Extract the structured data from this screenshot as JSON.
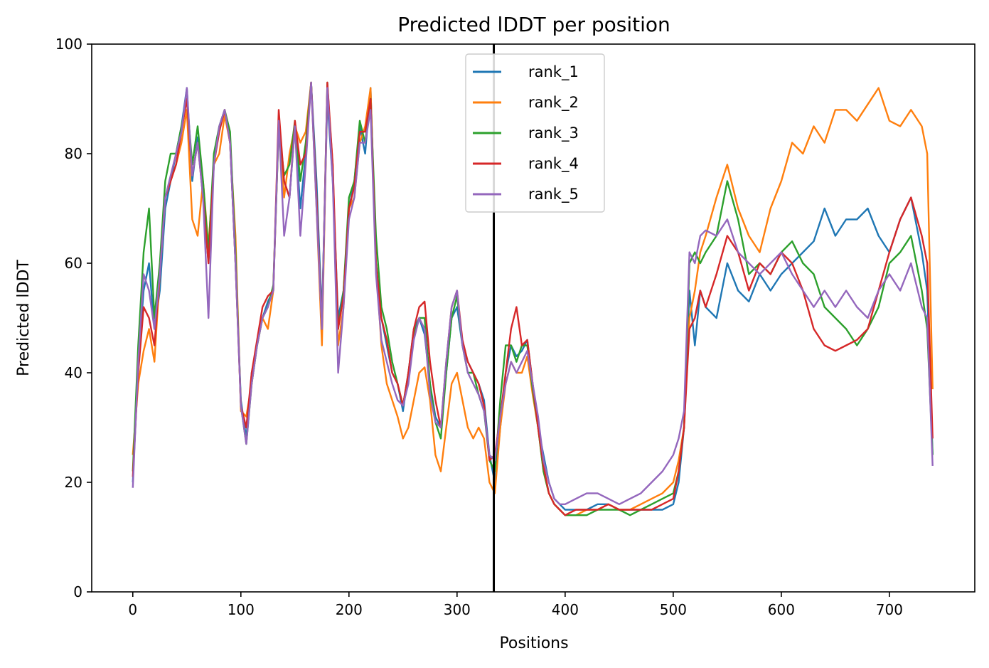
{
  "chart_data": {
    "type": "line",
    "title": "Predicted lDDT per position",
    "xlabel": "Positions",
    "ylabel": "Predicted lDDT",
    "xlim": [
      -38,
      779
    ],
    "ylim": [
      0,
      100
    ],
    "xticks": [
      0,
      100,
      200,
      300,
      400,
      500,
      600,
      700
    ],
    "yticks": [
      0,
      20,
      40,
      60,
      80,
      100
    ],
    "vline_x": 334,
    "legend_position": "upper-center",
    "grid": false,
    "series": [
      {
        "name": "rank_1",
        "color": "#1f77b4",
        "x": [
          0,
          5,
          10,
          15,
          20,
          25,
          30,
          35,
          40,
          45,
          50,
          55,
          60,
          65,
          70,
          75,
          80,
          85,
          90,
          95,
          100,
          105,
          110,
          115,
          120,
          125,
          130,
          135,
          140,
          145,
          150,
          155,
          160,
          165,
          170,
          175,
          180,
          185,
          190,
          195,
          200,
          205,
          210,
          215,
          220,
          225,
          230,
          235,
          240,
          245,
          250,
          255,
          260,
          265,
          270,
          275,
          280,
          285,
          290,
          295,
          300,
          305,
          310,
          315,
          320,
          325,
          330,
          335,
          340,
          345,
          350,
          355,
          360,
          365,
          370,
          375,
          380,
          385,
          390,
          395,
          400,
          410,
          420,
          430,
          440,
          450,
          460,
          470,
          480,
          490,
          500,
          505,
          510,
          515,
          520,
          525,
          530,
          540,
          550,
          560,
          570,
          580,
          590,
          600,
          610,
          620,
          630,
          640,
          650,
          660,
          670,
          680,
          690,
          700,
          710,
          720,
          730,
          735,
          740
        ],
        "y": [
          20,
          42,
          55,
          60,
          48,
          55,
          70,
          75,
          80,
          85,
          92,
          75,
          83,
          72,
          60,
          78,
          85,
          88,
          82,
          60,
          35,
          28,
          40,
          45,
          50,
          53,
          55,
          85,
          75,
          72,
          85,
          70,
          80,
          93,
          75,
          50,
          90,
          75,
          50,
          55,
          70,
          75,
          85,
          80,
          92,
          60,
          50,
          45,
          40,
          38,
          33,
          40,
          48,
          50,
          47,
          38,
          32,
          30,
          40,
          50,
          52,
          45,
          42,
          40,
          38,
          35,
          25,
          20,
          30,
          40,
          45,
          43,
          44,
          46,
          38,
          30,
          25,
          20,
          17,
          16,
          15,
          15,
          15,
          16,
          16,
          15,
          15,
          15,
          15,
          15,
          16,
          20,
          30,
          55,
          45,
          55,
          52,
          50,
          60,
          55,
          53,
          58,
          55,
          58,
          60,
          62,
          64,
          70,
          65,
          68,
          68,
          70,
          65,
          62,
          68,
          72,
          62,
          55,
          25
        ]
      },
      {
        "name": "rank_2",
        "color": "#ff7f0e",
        "x": [
          0,
          5,
          10,
          15,
          20,
          25,
          30,
          35,
          40,
          45,
          50,
          55,
          60,
          65,
          70,
          75,
          80,
          85,
          90,
          95,
          100,
          105,
          110,
          115,
          120,
          125,
          130,
          135,
          140,
          145,
          150,
          155,
          160,
          165,
          170,
          175,
          180,
          185,
          190,
          195,
          200,
          205,
          210,
          215,
          220,
          225,
          230,
          235,
          240,
          245,
          250,
          255,
          260,
          265,
          270,
          275,
          280,
          285,
          290,
          295,
          300,
          305,
          310,
          315,
          320,
          325,
          330,
          335,
          340,
          345,
          350,
          355,
          360,
          365,
          370,
          375,
          380,
          385,
          390,
          395,
          400,
          410,
          420,
          430,
          440,
          450,
          460,
          470,
          480,
          490,
          500,
          505,
          510,
          515,
          520,
          525,
          530,
          540,
          550,
          560,
          570,
          580,
          590,
          600,
          610,
          620,
          630,
          640,
          650,
          660,
          670,
          680,
          690,
          700,
          710,
          720,
          730,
          735,
          740
        ],
        "y": [
          25,
          38,
          44,
          48,
          42,
          58,
          72,
          75,
          78,
          82,
          88,
          68,
          65,
          75,
          63,
          78,
          80,
          87,
          82,
          65,
          33,
          32,
          38,
          45,
          50,
          48,
          55,
          85,
          72,
          80,
          85,
          82,
          84,
          93,
          70,
          45,
          92,
          78,
          45,
          52,
          70,
          72,
          82,
          85,
          92,
          60,
          45,
          38,
          35,
          32,
          28,
          30,
          35,
          40,
          41,
          35,
          25,
          22,
          30,
          38,
          40,
          35,
          30,
          28,
          30,
          28,
          20,
          18,
          30,
          38,
          42,
          40,
          40,
          43,
          36,
          30,
          22,
          18,
          16,
          15,
          14,
          14,
          15,
          15,
          16,
          15,
          15,
          16,
          17,
          18,
          20,
          24,
          30,
          50,
          55,
          62,
          65,
          72,
          78,
          70,
          65,
          62,
          70,
          75,
          82,
          80,
          85,
          82,
          88,
          88,
          86,
          89,
          92,
          86,
          85,
          88,
          85,
          80,
          37
        ]
      },
      {
        "name": "rank_3",
        "color": "#2ca02c",
        "x": [
          0,
          5,
          10,
          15,
          20,
          25,
          30,
          35,
          40,
          45,
          50,
          55,
          60,
          65,
          70,
          75,
          80,
          85,
          90,
          95,
          100,
          105,
          110,
          115,
          120,
          125,
          130,
          135,
          140,
          145,
          150,
          155,
          160,
          165,
          170,
          175,
          180,
          185,
          190,
          195,
          200,
          205,
          210,
          215,
          220,
          225,
          230,
          235,
          240,
          245,
          250,
          255,
          260,
          265,
          270,
          275,
          280,
          285,
          290,
          295,
          300,
          305,
          310,
          315,
          320,
          325,
          330,
          335,
          340,
          345,
          350,
          355,
          360,
          365,
          370,
          375,
          380,
          385,
          390,
          395,
          400,
          410,
          420,
          430,
          440,
          450,
          460,
          470,
          480,
          490,
          500,
          505,
          510,
          515,
          520,
          525,
          530,
          540,
          550,
          560,
          570,
          580,
          590,
          600,
          610,
          620,
          630,
          640,
          650,
          660,
          670,
          680,
          690,
          700,
          710,
          720,
          730,
          735,
          740
        ],
        "y": [
          22,
          45,
          62,
          70,
          50,
          60,
          75,
          80,
          80,
          85,
          90,
          78,
          85,
          75,
          62,
          80,
          85,
          88,
          84,
          62,
          34,
          27,
          38,
          45,
          50,
          52,
          56,
          85,
          76,
          78,
          86,
          75,
          82,
          93,
          72,
          48,
          93,
          76,
          48,
          55,
          72,
          75,
          86,
          82,
          90,
          65,
          52,
          48,
          42,
          38,
          34,
          40,
          47,
          50,
          50,
          38,
          31,
          28,
          40,
          50,
          54,
          45,
          40,
          40,
          36,
          33,
          24,
          22,
          35,
          45,
          45,
          42,
          45,
          45,
          37,
          30,
          22,
          18,
          16,
          15,
          14,
          14,
          14,
          15,
          15,
          15,
          14,
          15,
          16,
          17,
          18,
          22,
          30,
          60,
          62,
          60,
          62,
          65,
          75,
          68,
          58,
          60,
          58,
          62,
          64,
          60,
          58,
          52,
          50,
          48,
          45,
          48,
          52,
          60,
          62,
          65,
          55,
          48,
          25
        ]
      },
      {
        "name": "rank_4",
        "color": "#d62728",
        "x": [
          0,
          5,
          10,
          15,
          20,
          25,
          30,
          35,
          40,
          45,
          50,
          55,
          60,
          65,
          70,
          75,
          80,
          85,
          90,
          95,
          100,
          105,
          110,
          115,
          120,
          125,
          130,
          135,
          140,
          145,
          150,
          155,
          160,
          165,
          170,
          175,
          180,
          185,
          190,
          195,
          200,
          205,
          210,
          215,
          220,
          225,
          230,
          235,
          240,
          245,
          250,
          255,
          260,
          265,
          270,
          275,
          280,
          285,
          290,
          295,
          300,
          305,
          310,
          315,
          320,
          325,
          330,
          335,
          340,
          345,
          350,
          355,
          360,
          365,
          370,
          375,
          380,
          385,
          390,
          395,
          400,
          410,
          420,
          430,
          440,
          450,
          460,
          470,
          480,
          490,
          500,
          505,
          510,
          515,
          520,
          525,
          530,
          540,
          550,
          560,
          570,
          580,
          590,
          600,
          610,
          620,
          630,
          640,
          650,
          660,
          670,
          680,
          690,
          700,
          710,
          720,
          730,
          735,
          740
        ],
        "y": [
          21,
          40,
          52,
          50,
          45,
          58,
          72,
          75,
          78,
          84,
          90,
          76,
          82,
          72,
          60,
          78,
          84,
          88,
          82,
          60,
          34,
          30,
          40,
          46,
          52,
          54,
          55,
          88,
          75,
          72,
          86,
          78,
          80,
          93,
          72,
          48,
          93,
          78,
          48,
          54,
          70,
          74,
          84,
          84,
          90,
          60,
          50,
          46,
          40,
          38,
          34,
          40,
          48,
          52,
          53,
          42,
          35,
          30,
          42,
          52,
          55,
          46,
          42,
          40,
          38,
          34,
          24,
          25,
          32,
          40,
          48,
          52,
          45,
          46,
          38,
          30,
          23,
          18,
          16,
          15,
          14,
          15,
          15,
          15,
          16,
          15,
          15,
          15,
          15,
          16,
          17,
          22,
          30,
          48,
          50,
          55,
          52,
          58,
          65,
          62,
          55,
          60,
          58,
          62,
          60,
          55,
          48,
          45,
          44,
          45,
          46,
          48,
          55,
          62,
          68,
          72,
          65,
          60,
          28
        ]
      },
      {
        "name": "rank_5",
        "color": "#9467bd",
        "x": [
          0,
          5,
          10,
          15,
          20,
          25,
          30,
          35,
          40,
          45,
          50,
          55,
          60,
          65,
          70,
          75,
          80,
          85,
          90,
          95,
          100,
          105,
          110,
          115,
          120,
          125,
          130,
          135,
          140,
          145,
          150,
          155,
          160,
          165,
          170,
          175,
          180,
          185,
          190,
          195,
          200,
          205,
          210,
          215,
          220,
          225,
          230,
          235,
          240,
          245,
          250,
          255,
          260,
          265,
          270,
          275,
          280,
          285,
          290,
          295,
          300,
          305,
          310,
          315,
          320,
          325,
          330,
          335,
          340,
          345,
          350,
          355,
          360,
          365,
          370,
          375,
          380,
          385,
          390,
          395,
          400,
          410,
          420,
          430,
          440,
          450,
          460,
          470,
          480,
          490,
          500,
          505,
          510,
          515,
          520,
          525,
          530,
          540,
          550,
          560,
          570,
          580,
          590,
          600,
          610,
          620,
          630,
          640,
          650,
          660,
          670,
          680,
          690,
          700,
          710,
          720,
          730,
          735,
          740
        ],
        "y": [
          19,
          42,
          58,
          55,
          48,
          58,
          72,
          76,
          80,
          84,
          92,
          76,
          82,
          72,
          50,
          78,
          85,
          88,
          82,
          60,
          34,
          27,
          38,
          45,
          50,
          52,
          55,
          86,
          65,
          72,
          85,
          65,
          78,
          93,
          70,
          48,
          92,
          75,
          40,
          52,
          68,
          72,
          82,
          82,
          88,
          58,
          46,
          42,
          38,
          35,
          34,
          38,
          46,
          50,
          48,
          36,
          31,
          30,
          42,
          52,
          55,
          45,
          40,
          38,
          36,
          33,
          25,
          24,
          32,
          38,
          42,
          40,
          42,
          44,
          38,
          32,
          24,
          20,
          17,
          16,
          16,
          17,
          18,
          18,
          17,
          16,
          17,
          18,
          20,
          22,
          25,
          28,
          33,
          62,
          60,
          65,
          66,
          65,
          68,
          62,
          60,
          58,
          60,
          62,
          58,
          55,
          52,
          55,
          52,
          55,
          52,
          50,
          55,
          58,
          55,
          60,
          52,
          50,
          23
        ]
      }
    ]
  }
}
